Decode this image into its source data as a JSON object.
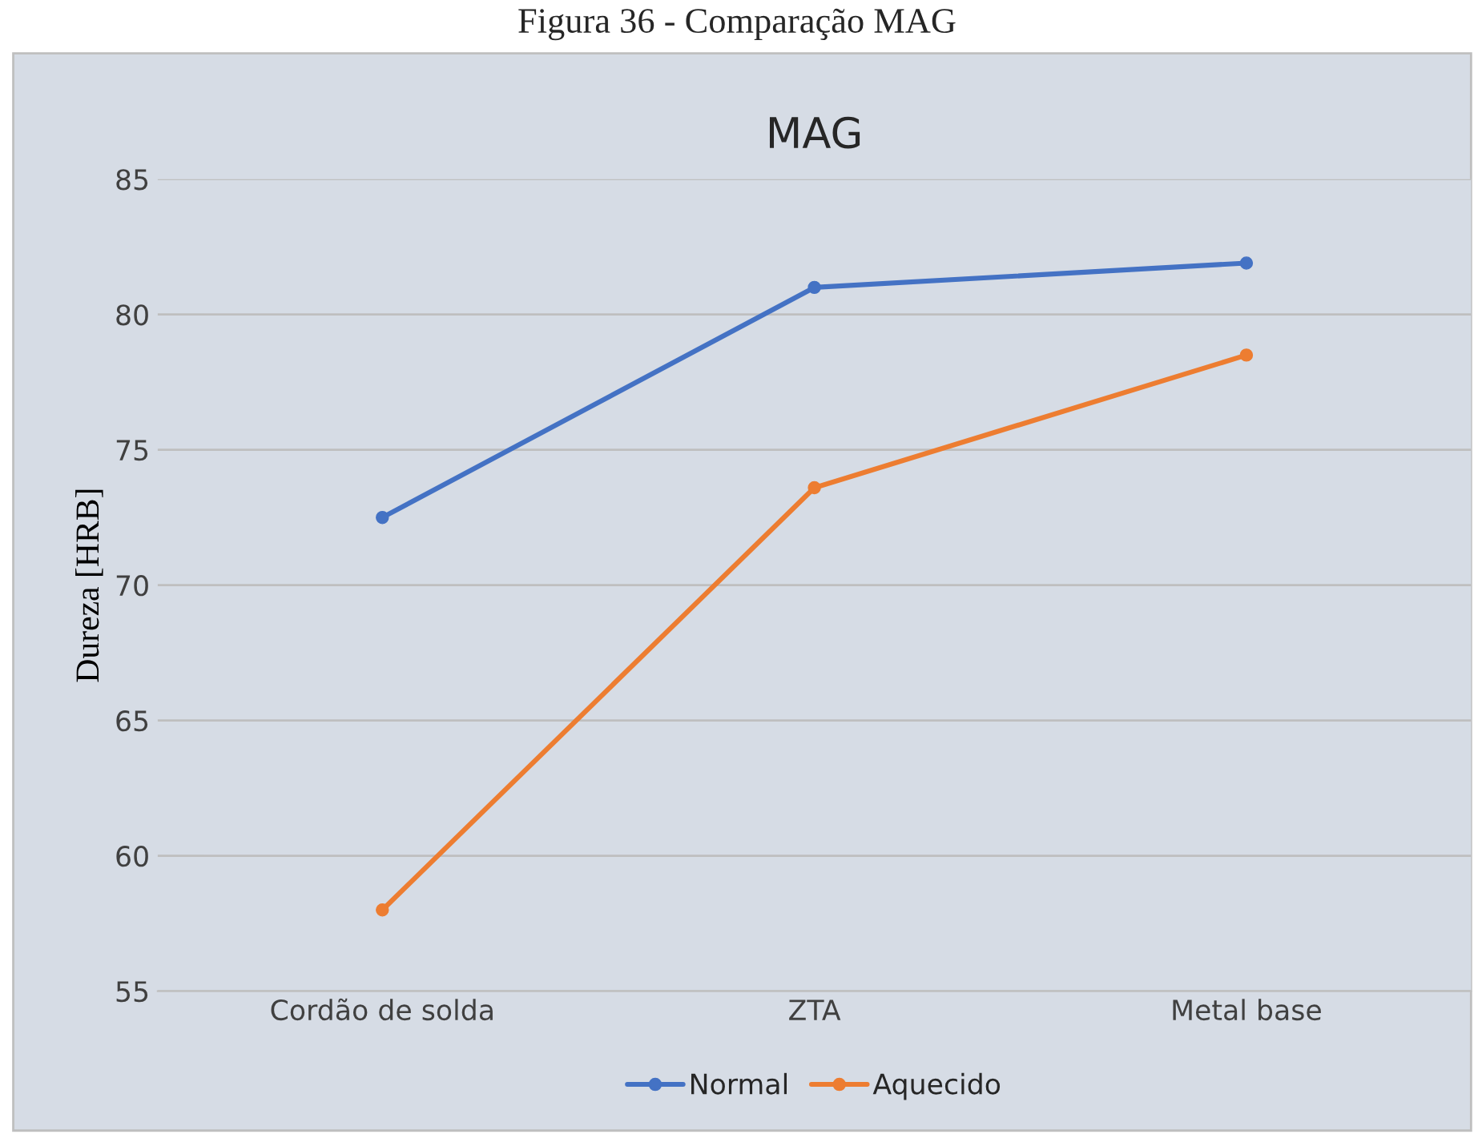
{
  "chart_data": {
    "type": "line",
    "title": "MAG",
    "ylabel": "Dureza [HRB]",
    "annotations": [
      "Figura 36 - Comparação MAG"
    ],
    "categories": [
      "Cordão de solda",
      "ZTA",
      "Metal base"
    ],
    "series": [
      {
        "name": "Normal",
        "color": "#4472c4",
        "values": [
          72.5,
          81.0,
          81.9
        ]
      },
      {
        "name": "Aquecido",
        "color": "#ed7d31",
        "values": [
          58.0,
          73.6,
          78.5
        ]
      }
    ],
    "ylim": [
      55,
      85
    ],
    "yticks": [
      55,
      60,
      65,
      70,
      75,
      80,
      85
    ],
    "grid": "y",
    "legend": "bottom",
    "marker": "circle",
    "line_style": "solid"
  }
}
